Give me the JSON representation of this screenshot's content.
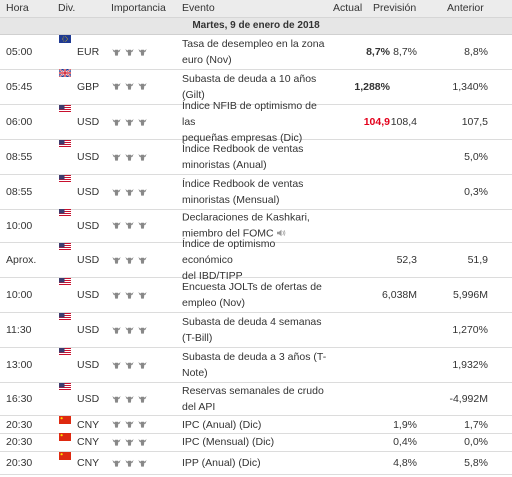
{
  "columns": {
    "hora": "Hora",
    "div": "Div.",
    "importancia": "Importancia",
    "evento": "Evento",
    "actual": "Actual",
    "prevision": "Previsión",
    "anterior": "Anterior"
  },
  "date_label": "Martes, 9 de enero de 2018",
  "colors": {
    "red_value": "#e3001b",
    "header_bg": "#ececec",
    "date_bg": "#e6e6e6",
    "bull_icon": "#888888"
  },
  "events": [
    {
      "time": "05:00",
      "flag": "eu-flag",
      "currency": "EUR",
      "event_l1": "Tasa de desempleo en la zona",
      "event_l2": "euro (Nov)",
      "actual": "8,7%",
      "actual_color": "#333333",
      "forecast": "8,7%",
      "previous": "8,8%"
    },
    {
      "time": "05:45",
      "flag": "gb-flag",
      "currency": "GBP",
      "event_l1": "Subasta de deuda a 10 años",
      "event_l2": "(Gilt)",
      "actual": "1,288%",
      "actual_color": "#333333",
      "forecast": "",
      "previous": "1,340%"
    },
    {
      "time": "06:00",
      "flag": "us-flag",
      "currency": "USD",
      "event_l1": "Índice NFIB de optimismo de las",
      "event_l2": "pequeñas empresas (Dic)",
      "actual": "104,9",
      "actual_color": "#e3001b",
      "forecast": "108,4",
      "previous": "107,5"
    },
    {
      "time": "08:55",
      "flag": "us-flag",
      "currency": "USD",
      "event_l1": "Índice Redbook de ventas",
      "event_l2": "minoristas (Anual)",
      "actual": "",
      "actual_color": "#333333",
      "forecast": "",
      "previous": "5,0%"
    },
    {
      "time": "08:55",
      "flag": "us-flag",
      "currency": "USD",
      "event_l1": "Índice Redbook de ventas",
      "event_l2": "minoristas (Mensual)",
      "actual": "",
      "actual_color": "#333333",
      "forecast": "",
      "previous": "0,3%"
    },
    {
      "time": "10:00",
      "flag": "us-flag",
      "currency": "USD",
      "event_l1": "Declaraciones de Kashkari,",
      "event_l2": "miembro del FOMC",
      "speaker": true,
      "actual": "",
      "actual_color": "#333333",
      "forecast": "",
      "previous": ""
    },
    {
      "time": "Aprox.",
      "flag": "us-flag",
      "currency": "USD",
      "event_l1": "Índice de optimismo económico",
      "event_l2": "del IBD/TIPP",
      "actual": "",
      "actual_color": "#333333",
      "forecast": "52,3",
      "previous": "51,9"
    },
    {
      "time": "10:00",
      "flag": "us-flag",
      "currency": "USD",
      "event_l1": "Encuesta JOLTs de ofertas de",
      "event_l2": "empleo (Nov)",
      "actual": "",
      "actual_color": "#333333",
      "forecast": "6,038M",
      "previous": "5,996M"
    },
    {
      "time": "11:30",
      "flag": "us-flag",
      "currency": "USD",
      "event_l1": "Subasta de deuda 4 semanas",
      "event_l2": "(T-Bill)",
      "actual": "",
      "actual_color": "#333333",
      "forecast": "",
      "previous": "1,270%"
    },
    {
      "time": "13:00",
      "flag": "us-flag",
      "currency": "USD",
      "event_l1": "Subasta de deuda a 3 años (T-",
      "event_l2": "Note)",
      "actual": "",
      "actual_color": "#333333",
      "forecast": "",
      "previous": "1,932%"
    },
    {
      "time": "16:30",
      "flag": "us-flag",
      "currency": "USD",
      "event_l1": "Reservas semanales de crudo",
      "event_l2": "del API",
      "actual": "",
      "actual_color": "#333333",
      "forecast": "",
      "previous": "-4,992M"
    },
    {
      "time": "20:30",
      "flag": "cn-flag",
      "currency": "CNY",
      "event_l1": "IPC (Anual) (Dic)",
      "event_l2": "",
      "actual": "",
      "actual_color": "#333333",
      "forecast": "1,9%",
      "previous": "1,7%"
    },
    {
      "time": "20:30",
      "flag": "cn-flag",
      "currency": "CNY",
      "event_l1": "IPC (Mensual) (Dic)",
      "event_l2": "",
      "actual": "",
      "actual_color": "#333333",
      "forecast": "0,4%",
      "previous": "0,0%"
    },
    {
      "time": "20:30",
      "flag": "cn-flag",
      "currency": "CNY",
      "event_l1": "IPP (Anual) (Dic)",
      "event_l2": "",
      "actual": "",
      "actual_color": "#333333",
      "forecast": "4,8%",
      "previous": "5,8%"
    }
  ]
}
